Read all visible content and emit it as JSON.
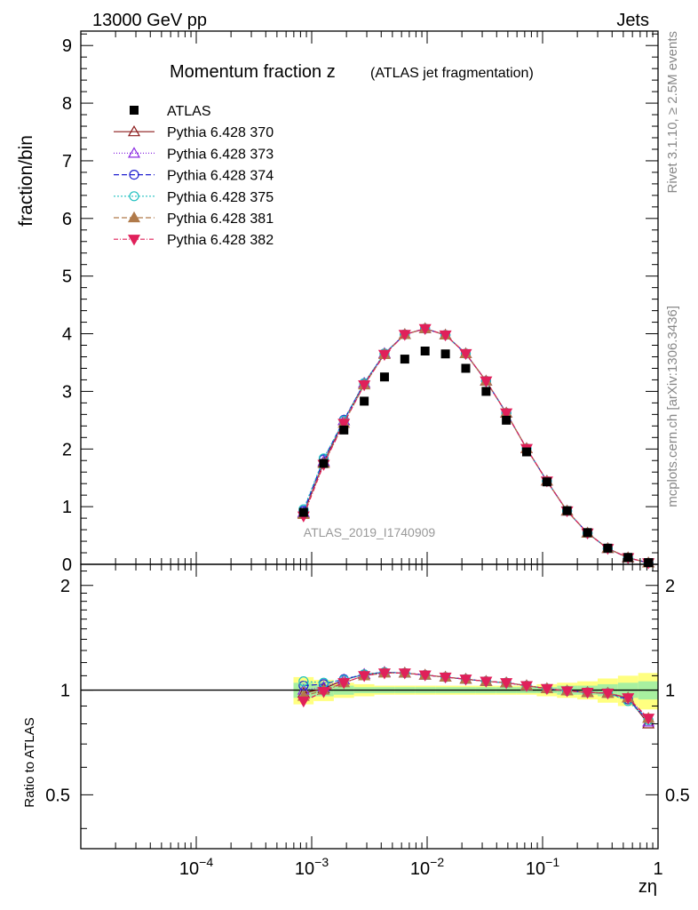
{
  "header": {
    "left": "13000 GeV pp",
    "right": "Jets"
  },
  "side_labels": {
    "rivet": "Rivet 3.1.10, ≥ 2.5M events",
    "mcplots": "mcplots.cern.ch [arXiv:1306.3436]"
  },
  "chart_data": {
    "type": "scatter",
    "title_main": "Momentum fraction z",
    "title_sub": "(ATLAS jet fragmentation)",
    "watermark": "ATLAS_2019_I1740909",
    "xlabel": "zη",
    "ylabel_top": "fraction/bin",
    "ylabel_bottom": "Ratio to ATLAS",
    "xscale": "log",
    "xlim": [
      1e-05,
      1
    ],
    "ylim_top": [
      0,
      9.25
    ],
    "ylim_bottom": [
      0.35,
      2.3
    ],
    "x_ticks": [
      {
        "value": 0.0001,
        "base": "10",
        "exp": "−4"
      },
      {
        "value": 0.001,
        "base": "10",
        "exp": "−3"
      },
      {
        "value": 0.01,
        "base": "10",
        "exp": "−2"
      },
      {
        "value": 0.1,
        "base": "10",
        "exp": "−1"
      },
      {
        "value": 1,
        "base": "1",
        "exp": ""
      }
    ],
    "y_ticks_top": [
      "0",
      "1",
      "2",
      "3",
      "4",
      "5",
      "6",
      "7",
      "8",
      "9"
    ],
    "y_ticks_bottom": [
      "0.5",
      "1",
      "2"
    ],
    "legend_position": "top-left",
    "x": [
      0.00085,
      0.00127,
      0.0019,
      0.00285,
      0.00427,
      0.0064,
      0.0096,
      0.0144,
      0.0216,
      0.0324,
      0.0485,
      0.0727,
      0.109,
      0.163,
      0.245,
      0.367,
      0.55,
      0.825
    ],
    "atlas": {
      "name": "ATLAS",
      "values": [
        0.9,
        1.75,
        2.33,
        2.83,
        3.25,
        3.56,
        3.7,
        3.65,
        3.4,
        3.0,
        2.5,
        1.95,
        1.43,
        0.93,
        0.55,
        0.28,
        0.12,
        0.03
      ]
    },
    "band": {
      "inner": [
        0.05,
        0.04,
        0.03,
        0.02,
        0.02,
        0.02,
        0.02,
        0.02,
        0.02,
        0.02,
        0.02,
        0.02,
        0.02,
        0.03,
        0.03,
        0.04,
        0.05,
        0.06
      ],
      "outer": [
        0.09,
        0.07,
        0.05,
        0.04,
        0.03,
        0.03,
        0.03,
        0.03,
        0.03,
        0.03,
        0.03,
        0.03,
        0.04,
        0.05,
        0.06,
        0.08,
        0.1,
        0.12
      ]
    },
    "series": [
      {
        "name": "Pythia 6.428 370",
        "color": "#8b1a1a",
        "dash": "",
        "marker": "triangle-up-open",
        "ratio": [
          0.98,
          1.01,
          1.07,
          1.11,
          1.125,
          1.12,
          1.105,
          1.09,
          1.075,
          1.06,
          1.05,
          1.03,
          1.01,
          0.995,
          0.985,
          0.98,
          0.95,
          0.8
        ]
      },
      {
        "name": "Pythia 6.428 373",
        "color": "#8a2be2",
        "dash": "1,2",
        "marker": "triangle-up-open",
        "ratio": [
          1.0,
          1.02,
          1.07,
          1.11,
          1.125,
          1.12,
          1.105,
          1.09,
          1.075,
          1.06,
          1.05,
          1.03,
          1.01,
          0.995,
          0.985,
          0.98,
          0.95,
          0.81
        ]
      },
      {
        "name": "Pythia 6.428 374",
        "color": "#2020d0",
        "dash": "6,3",
        "marker": "circle-open",
        "ratio": [
          1.03,
          1.04,
          1.075,
          1.11,
          1.125,
          1.12,
          1.105,
          1.09,
          1.075,
          1.06,
          1.05,
          1.03,
          1.01,
          0.995,
          0.985,
          0.98,
          0.94,
          0.82
        ]
      },
      {
        "name": "Pythia 6.428 375",
        "color": "#20c0c0",
        "dash": "2,2",
        "marker": "circle-open",
        "ratio": [
          1.06,
          1.05,
          1.07,
          1.11,
          1.125,
          1.12,
          1.105,
          1.09,
          1.075,
          1.06,
          1.05,
          1.03,
          1.01,
          0.995,
          0.985,
          0.98,
          0.93,
          0.82
        ]
      },
      {
        "name": "Pythia 6.428 381",
        "color": "#b07a4a",
        "dash": "6,3",
        "marker": "triangle-up-filled",
        "ratio": [
          0.96,
          1.0,
          1.05,
          1.1,
          1.12,
          1.12,
          1.105,
          1.09,
          1.075,
          1.06,
          1.05,
          1.03,
          1.01,
          0.995,
          0.985,
          0.98,
          0.95,
          0.83
        ]
      },
      {
        "name": "Pythia 6.428 382",
        "color": "#e0205a",
        "dash": "5,2,1,2",
        "marker": "triangle-down-filled",
        "ratio": [
          0.93,
          0.99,
          1.05,
          1.1,
          1.12,
          1.12,
          1.105,
          1.09,
          1.075,
          1.06,
          1.05,
          1.03,
          1.01,
          0.995,
          0.985,
          0.98,
          0.95,
          0.83
        ]
      }
    ]
  }
}
